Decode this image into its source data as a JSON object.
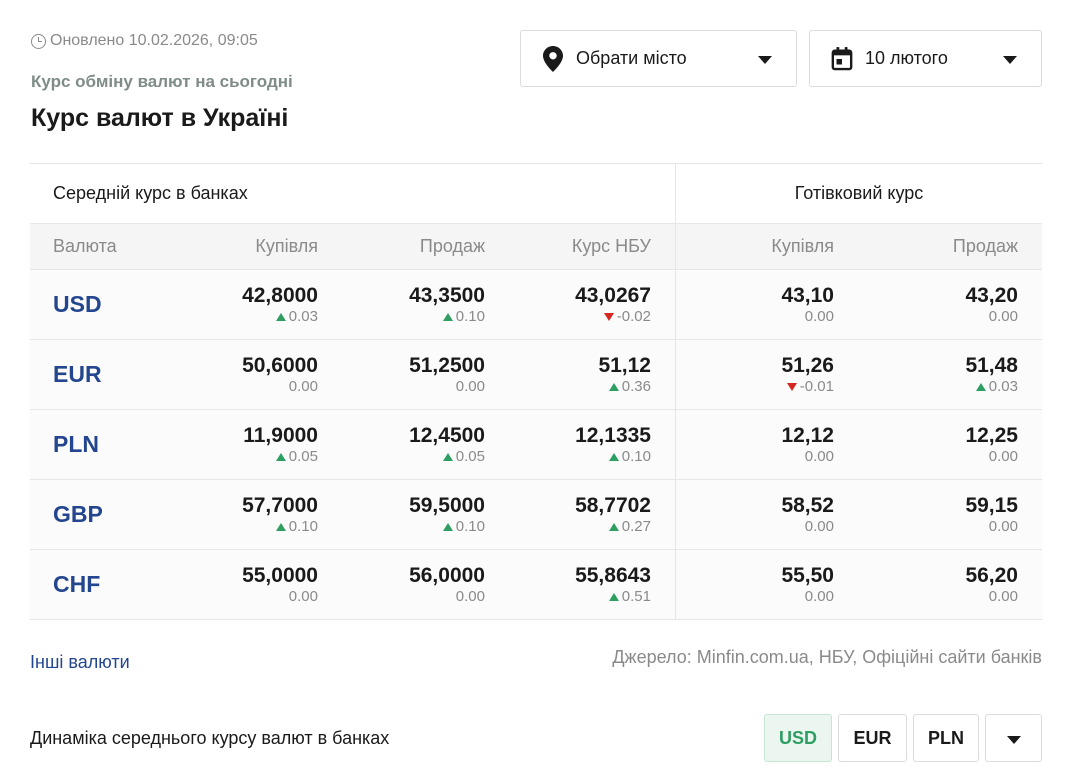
{
  "header": {
    "updated": "Оновлено 10.02.2026, 09:05",
    "subtitle": "Курс обміну валют на сьогодні",
    "title": "Курс валют в Україні"
  },
  "filters": {
    "city_label": "Обрати місто",
    "date_label": "10 лютого"
  },
  "table": {
    "group_left": "Середній курс в банках",
    "group_right": "Готівковий курс",
    "columns": [
      "Валюта",
      "Купівля",
      "Продаж",
      "Курс НБУ",
      "Купівля",
      "Продаж"
    ],
    "rows": [
      {
        "code": "USD",
        "buy": {
          "v": "42,8000",
          "d": "0.03",
          "dir": "up"
        },
        "sell": {
          "v": "43,3500",
          "d": "0.10",
          "dir": "up"
        },
        "nbu": {
          "v": "43,0267",
          "d": "-0.02",
          "dir": "down"
        },
        "cash_buy": {
          "v": "43,10",
          "d": "0.00",
          "dir": "none"
        },
        "cash_sell": {
          "v": "43,20",
          "d": "0.00",
          "dir": "none"
        }
      },
      {
        "code": "EUR",
        "buy": {
          "v": "50,6000",
          "d": "0.00",
          "dir": "none"
        },
        "sell": {
          "v": "51,2500",
          "d": "0.00",
          "dir": "none"
        },
        "nbu": {
          "v": "51,12",
          "d": "0.36",
          "dir": "up"
        },
        "cash_buy": {
          "v": "51,26",
          "d": "-0.01",
          "dir": "down"
        },
        "cash_sell": {
          "v": "51,48",
          "d": "0.03",
          "dir": "up"
        }
      },
      {
        "code": "PLN",
        "buy": {
          "v": "11,9000",
          "d": "0.05",
          "dir": "up"
        },
        "sell": {
          "v": "12,4500",
          "d": "0.05",
          "dir": "up"
        },
        "nbu": {
          "v": "12,1335",
          "d": "0.10",
          "dir": "up"
        },
        "cash_buy": {
          "v": "12,12",
          "d": "0.00",
          "dir": "none"
        },
        "cash_sell": {
          "v": "12,25",
          "d": "0.00",
          "dir": "none"
        }
      },
      {
        "code": "GBP",
        "buy": {
          "v": "57,7000",
          "d": "0.10",
          "dir": "up"
        },
        "sell": {
          "v": "59,5000",
          "d": "0.10",
          "dir": "up"
        },
        "nbu": {
          "v": "58,7702",
          "d": "0.27",
          "dir": "up"
        },
        "cash_buy": {
          "v": "58,52",
          "d": "0.00",
          "dir": "none"
        },
        "cash_sell": {
          "v": "59,15",
          "d": "0.00",
          "dir": "none"
        }
      },
      {
        "code": "CHF",
        "buy": {
          "v": "55,0000",
          "d": "0.00",
          "dir": "none"
        },
        "sell": {
          "v": "56,0000",
          "d": "0.00",
          "dir": "none"
        },
        "nbu": {
          "v": "55,8643",
          "d": "0.51",
          "dir": "up"
        },
        "cash_buy": {
          "v": "55,50",
          "d": "0.00",
          "dir": "none"
        },
        "cash_sell": {
          "v": "56,20",
          "d": "0.00",
          "dir": "none"
        }
      }
    ]
  },
  "footer": {
    "other_currencies": "Інші валюти",
    "source": "Джерело: Minfin.com.ua, НБУ, Офіційні сайти банків"
  },
  "dynamics": {
    "label": "Динаміка середнього курсу валют в банках",
    "buttons": [
      "USD",
      "EUR",
      "PLN"
    ],
    "active": "USD"
  },
  "colors": {
    "currency_code": "#24468e",
    "up": "#2e9e62",
    "down": "#d4261f",
    "active_button_bg": "#eaf6ef"
  },
  "icons": {
    "updated": "clock-icon",
    "city": "location-pin-icon",
    "date": "calendar-icon",
    "dropdown": "chevron-down-icon"
  }
}
